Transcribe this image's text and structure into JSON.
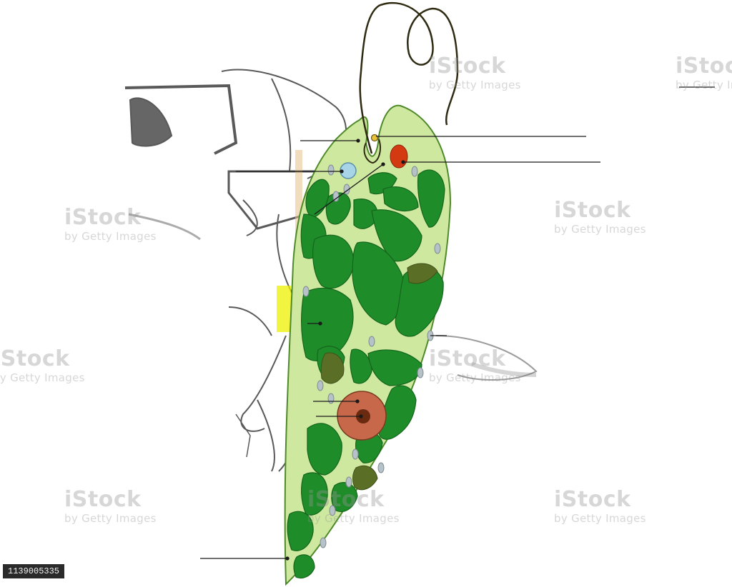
{
  "figure": {
    "subject_icon": "euglena-cell-icon",
    "colors": {
      "cytoplasm": "#cfe8a0",
      "membrane": "#4f8a2a",
      "chloroplast": "#1f8c2a",
      "chloroplast_edge": "#15651c",
      "paramylon": "#b6c2c8",
      "eyespot": "#d43a12",
      "contractile_vacuole": "#a8d4e8",
      "nucleus": "#c8684a",
      "nucleolus": "#6a2a10",
      "flagellum": "#2f2a12",
      "leader_line": "#1a1a1a",
      "sketch": "#222222"
    },
    "labels": []
  },
  "watermark": {
    "brand": "iStock",
    "credit": "by Getty Images"
  },
  "stock_id": "1139005335"
}
